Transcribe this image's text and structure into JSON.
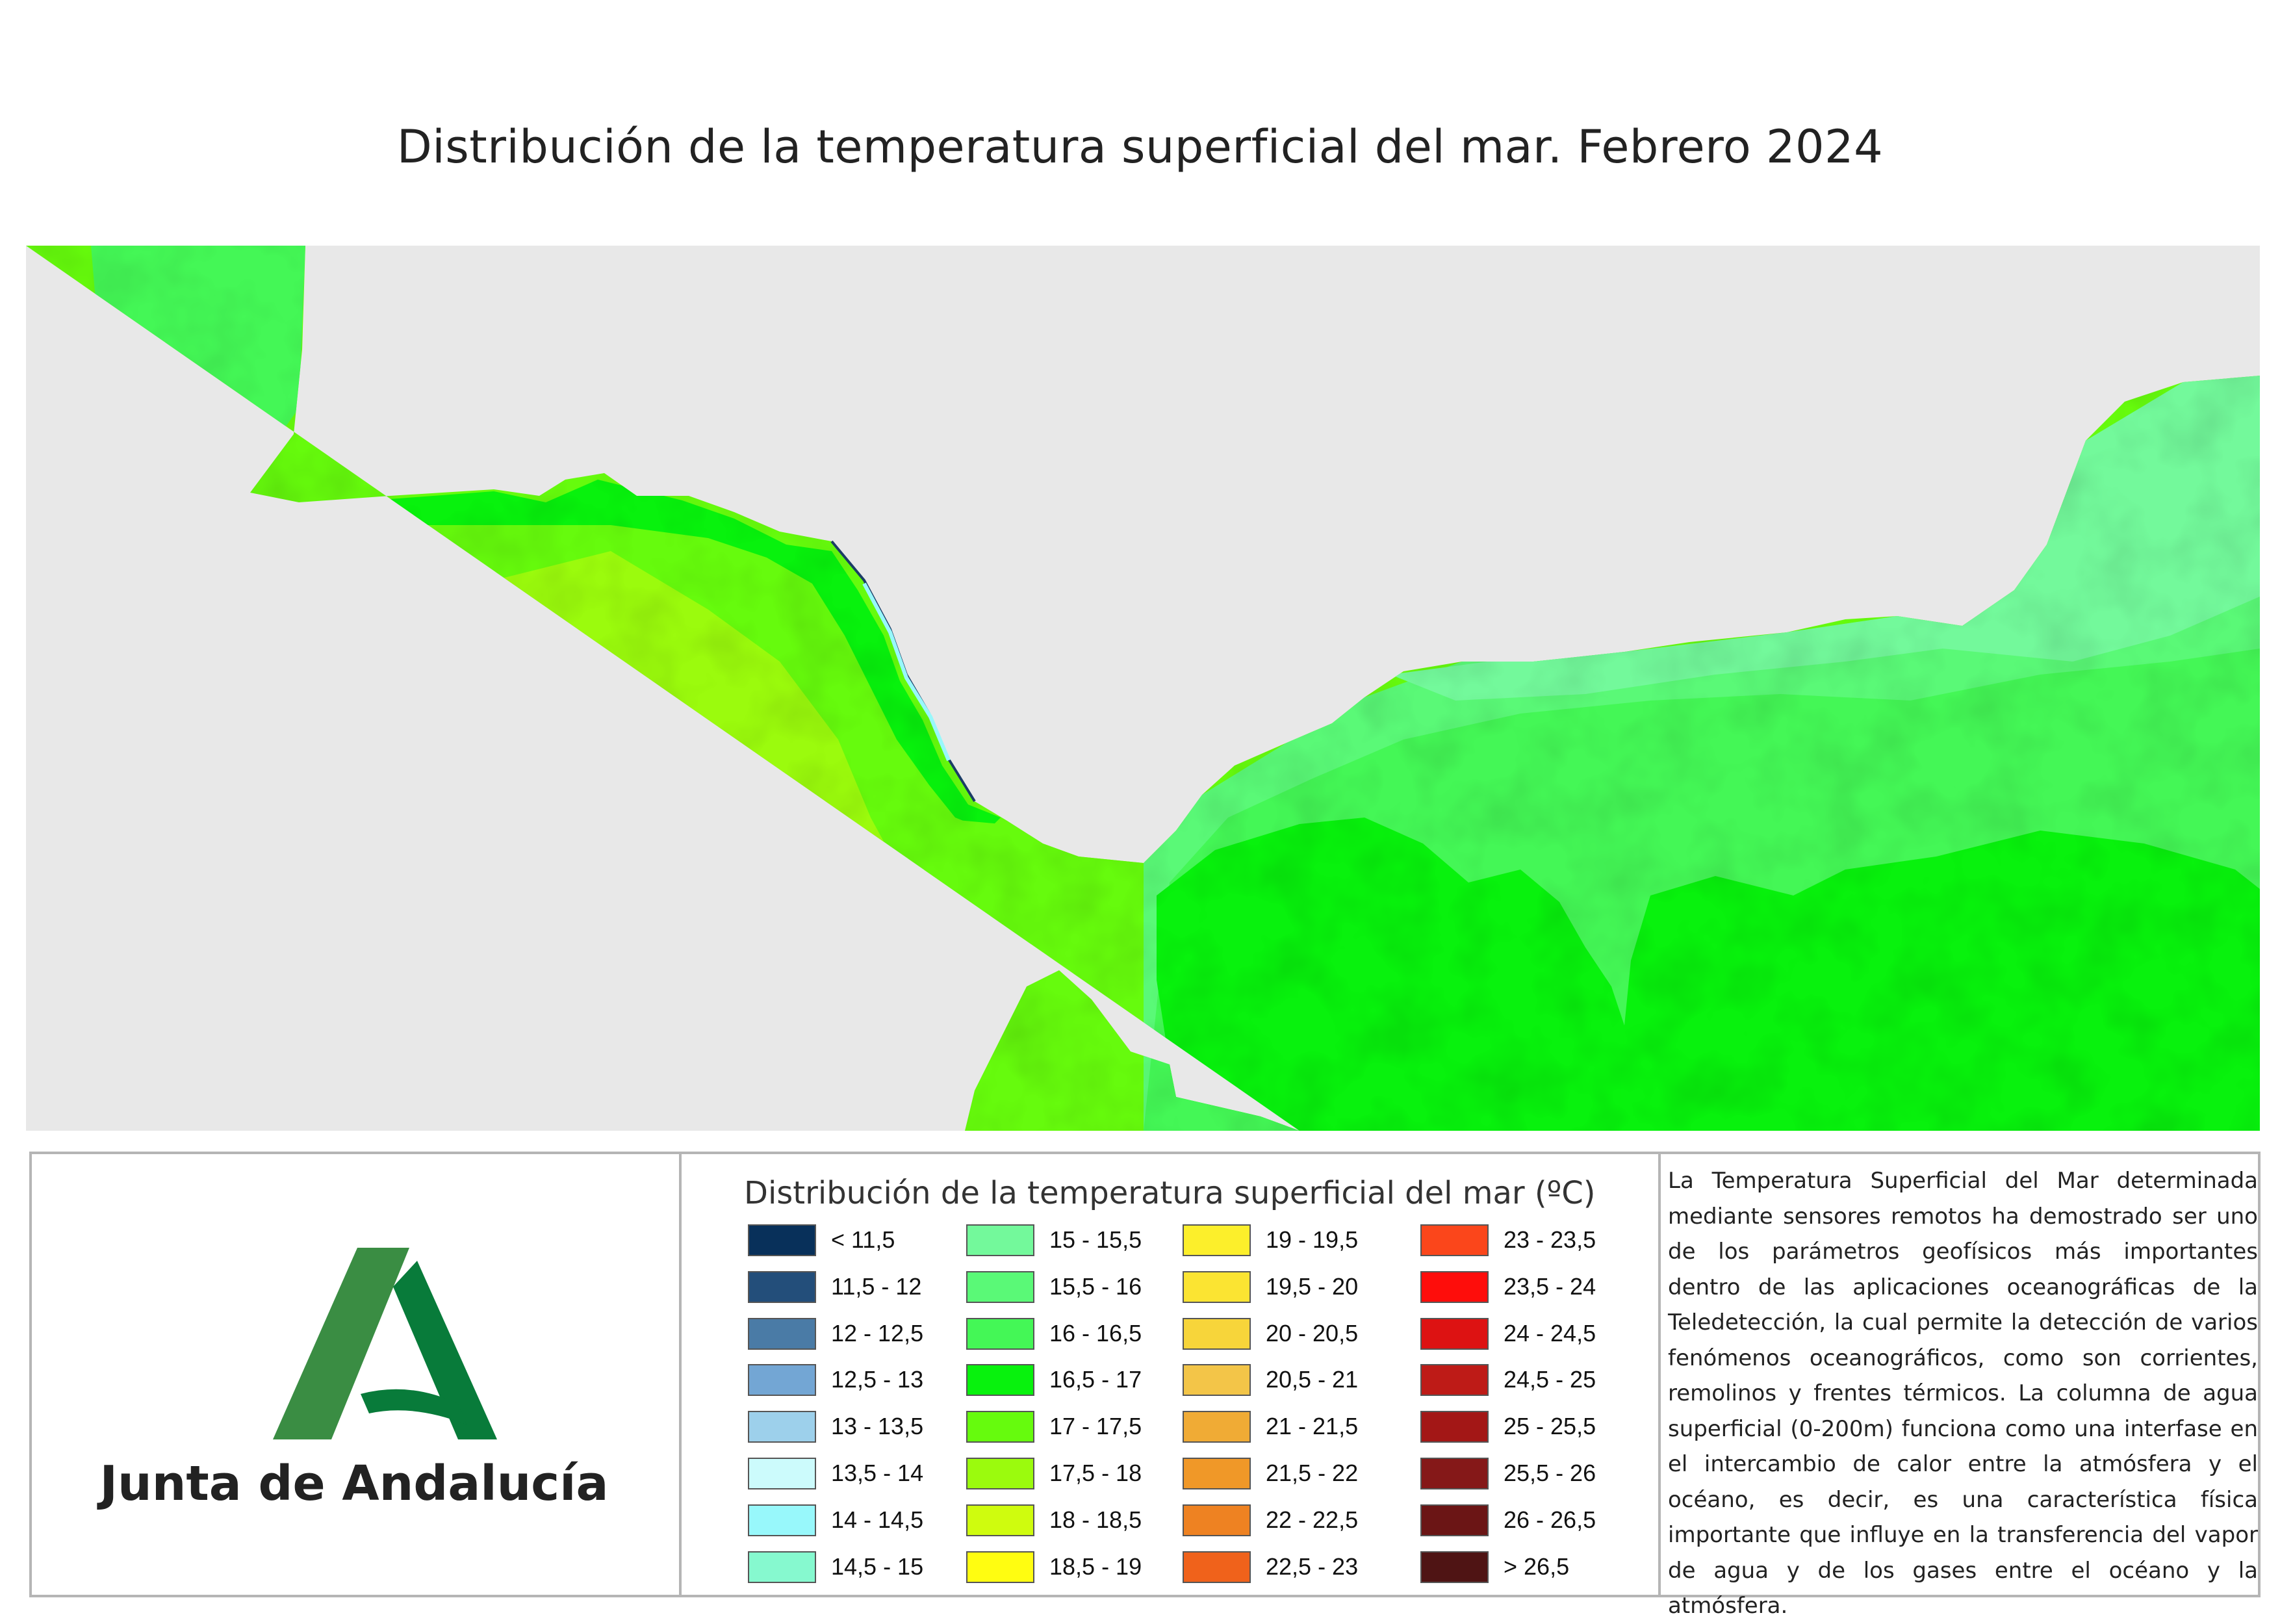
{
  "title": "Distribución de la temperatura superficial del mar. Febrero 2024",
  "logo": {
    "org_name": "Junta de Andalucía",
    "icon": "andalucia-a-logo",
    "colors": {
      "light_green": "#3a8d43",
      "dark_green": "#087b3a"
    }
  },
  "map": {
    "description_colors": {
      "land": "#e8e8e8",
      "outline": "#222222"
    }
  },
  "legend": {
    "title": "Distribución de la temperatura superficial del mar  (ºC)",
    "classes": [
      {
        "label": "< 11,5",
        "color": "#08305a"
      },
      {
        "label": "11,5 - 12",
        "color": "#234e7a"
      },
      {
        "label": "12 - 12,5",
        "color": "#4a7ba6"
      },
      {
        "label": "12,5 - 13",
        "color": "#73a6d4"
      },
      {
        "label": "13 - 13,5",
        "color": "#9dd0eb"
      },
      {
        "label": "13,5 - 14",
        "color": "#ccfbfc"
      },
      {
        "label": "14 - 14,5",
        "color": "#98f8fb"
      },
      {
        "label": "14,5 - 15",
        "color": "#86f9cf"
      },
      {
        "label": "15 - 15,5",
        "color": "#73f99b"
      },
      {
        "label": "15,5 - 16",
        "color": "#5af977"
      },
      {
        "label": "16 - 16,5",
        "color": "#44f756"
      },
      {
        "label": "16,5 - 17",
        "color": "#08f20d"
      },
      {
        "label": "17 - 17,5",
        "color": "#66fb0d"
      },
      {
        "label": "17,5 - 18",
        "color": "#9bfb0d"
      },
      {
        "label": "18 - 18,5",
        "color": "#cffc0e"
      },
      {
        "label": "18,5 - 19",
        "color": "#fffd11"
      },
      {
        "label": "19 - 19,5",
        "color": "#fcef2b"
      },
      {
        "label": "19,5 - 20",
        "color": "#fbe432"
      },
      {
        "label": "20 - 20,5",
        "color": "#f7d53a"
      },
      {
        "label": "20,5 - 21",
        "color": "#f3c548"
      },
      {
        "label": "21 - 21,5",
        "color": "#f0ab35"
      },
      {
        "label": "21,5 - 22",
        "color": "#f09828"
      },
      {
        "label": "22 - 22,5",
        "color": "#ee8222"
      },
      {
        "label": "22,5 - 23",
        "color": "#f0621b"
      },
      {
        "label": "23 - 23,5",
        "color": "#fb461b"
      },
      {
        "label": "23,5 - 24",
        "color": "#fe0d0b"
      },
      {
        "label": "24 - 24,5",
        "color": "#dd1212"
      },
      {
        "label": "24,5 - 25",
        "color": "#be1b17"
      },
      {
        "label": "25 - 25,5",
        "color": "#a31716"
      },
      {
        "label": "25,5 - 26",
        "color": "#851818"
      },
      {
        "label": "26 - 26,5",
        "color": "#6b1515"
      },
      {
        "label": "> 26,5",
        "color": "#4f1414"
      }
    ]
  },
  "description": "La Temperatura Superficial del Mar determinada mediante sensores remotos ha demostrado ser uno de los parámetros geofísicos más importantes dentro de las aplicaciones oceanográficas de la Teledetección, la cual permite la detección de varios fenómenos oceanográficos, como son corrientes, remolinos y frentes térmicos. La columna de agua superficial (0-200m) funciona como una interfase en el intercambio de calor entre la atmósfera y el océano, es decir, es una característica física importante que influye en la transferencia del vapor de agua y de los gases entre el océano y la atmósfera."
}
